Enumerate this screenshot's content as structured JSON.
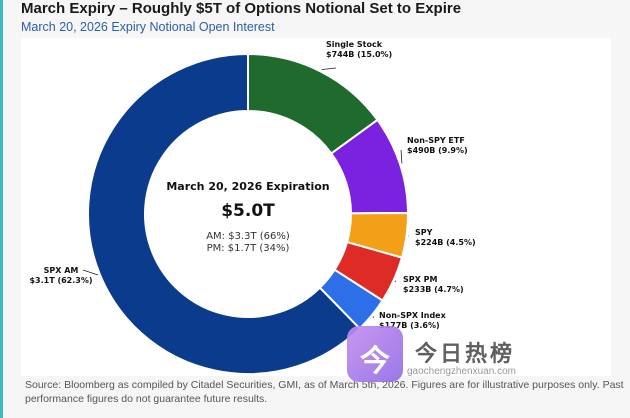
{
  "header": {
    "title": "March Expiry – Roughly $5T of Options Notional Set to Expire",
    "subtitle": "March 20, 2026 Expiry Notional Open Interest"
  },
  "chart_data": {
    "type": "pie",
    "variant": "donut",
    "title": "March Expiry – Roughly $5T of Options Notional Set to Expire",
    "subtitle": "March 20, 2026 Expiry Notional Open Interest",
    "center": {
      "heading": "March 20, 2026 Expiration",
      "total": "$5.0T",
      "line1": "AM: $3.3T  (66%)",
      "line2": "PM: $1.7T  (34%)"
    },
    "slices": [
      {
        "name": "Single Stock",
        "label": "$744B (15.0%)",
        "value": 744,
        "pct": 15.0,
        "color": "#1e6b2d"
      },
      {
        "name": "Non-SPY ETF",
        "label": "$490B (9.9%)",
        "value": 490,
        "pct": 9.9,
        "color": "#7a22e0"
      },
      {
        "name": "SPY",
        "label": "$224B (4.5%)",
        "value": 224,
        "pct": 4.5,
        "color": "#f2a018"
      },
      {
        "name": "SPX PM",
        "label": "$233B (4.7%)",
        "value": 233,
        "pct": 4.7,
        "color": "#de2b25"
      },
      {
        "name": "Non-SPX Index",
        "label": "$177B (3.6%)",
        "value": 177,
        "pct": 3.6,
        "color": "#2d6fe8"
      },
      {
        "name": "SPX AM",
        "label": "$3.1T (62.3%)",
        "value": 3100,
        "pct": 62.3,
        "color": "#0a3b8c"
      }
    ]
  },
  "footer": {
    "source": "Source: Bloomberg as compiled by Citadel Securities, GMI, as of March 5th, 2026. Figures are for illustrative purposes only. Past performance figures do not guarantee future results."
  },
  "watermark": {
    "glyph": "今",
    "name": "今日热榜",
    "url": "gaochengzhenxuan.com"
  }
}
